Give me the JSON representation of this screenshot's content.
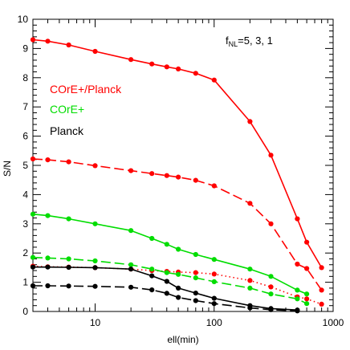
{
  "chart_data": {
    "type": "line",
    "title": "",
    "xlabel": "ell(min)",
    "ylabel": "S/N",
    "xscale": "log",
    "xlim": [
      3,
      1000
    ],
    "ylim": [
      0,
      10
    ],
    "x_tick_labels": [
      "10",
      "100",
      "1000"
    ],
    "y_tick_labels": [
      "0",
      "1",
      "2",
      "3",
      "4",
      "5",
      "6",
      "7",
      "8",
      "9",
      "10"
    ],
    "annotation": {
      "main": "f",
      "sub": "NL",
      "rest": "=5, 3, 1"
    },
    "legend": [
      {
        "label": "COrE+/Planck",
        "color": "#ff0000"
      },
      {
        "label": "COrE+",
        "color": "#00dd00"
      },
      {
        "label": "Planck",
        "color": "#000000"
      }
    ],
    "series": [
      {
        "group": "COrE+/Planck",
        "color": "#ff0000",
        "dash": "solid",
        "x": [
          3,
          4,
          6,
          10,
          20,
          30,
          40,
          50,
          70,
          100,
          200,
          300,
          500,
          600,
          800
        ],
        "y": [
          9.3,
          9.25,
          9.12,
          8.9,
          8.62,
          8.47,
          8.37,
          8.3,
          8.15,
          7.92,
          6.5,
          5.35,
          3.17,
          2.37,
          1.5
        ]
      },
      {
        "group": "COrE+/Planck",
        "color": "#ff0000",
        "dash": "longdash",
        "x": [
          3,
          4,
          6,
          10,
          20,
          30,
          40,
          50,
          70,
          100,
          200,
          300,
          500,
          600,
          800
        ],
        "y": [
          5.22,
          5.19,
          5.12,
          4.99,
          4.82,
          4.72,
          4.65,
          4.6,
          4.49,
          4.3,
          3.7,
          3.0,
          1.62,
          1.47,
          0.73
        ]
      },
      {
        "group": "COrE+/Planck",
        "color": "#ff0000",
        "dash": "dotted",
        "x": [
          3,
          4,
          6,
          10,
          20,
          30,
          40,
          50,
          70,
          100,
          200,
          300,
          500,
          600,
          800
        ],
        "y": [
          1.55,
          1.53,
          1.52,
          1.5,
          1.45,
          1.4,
          1.37,
          1.35,
          1.33,
          1.28,
          1.06,
          0.84,
          0.5,
          0.43,
          0.25
        ]
      },
      {
        "group": "COrE+",
        "color": "#00dd00",
        "dash": "solid",
        "x": [
          3,
          4,
          6,
          10,
          20,
          30,
          40,
          50,
          70,
          100,
          200,
          300,
          500,
          600
        ],
        "y": [
          3.33,
          3.28,
          3.17,
          3.0,
          2.77,
          2.5,
          2.3,
          2.13,
          1.95,
          1.78,
          1.45,
          1.2,
          0.73,
          0.6
        ]
      },
      {
        "group": "COrE+",
        "color": "#00dd00",
        "dash": "longdash",
        "x": [
          3,
          4,
          6,
          10,
          20,
          30,
          40,
          50,
          70,
          100,
          200,
          300,
          500,
          600
        ],
        "y": [
          1.85,
          1.83,
          1.8,
          1.73,
          1.6,
          1.45,
          1.33,
          1.27,
          1.15,
          1.02,
          0.8,
          0.6,
          0.43,
          0.27
        ]
      },
      {
        "group": "Planck",
        "color": "#000000",
        "dash": "solid",
        "x": [
          3,
          4,
          6,
          10,
          20,
          30,
          40,
          50,
          70,
          100,
          200,
          300,
          500
        ],
        "y": [
          1.52,
          1.52,
          1.51,
          1.5,
          1.45,
          1.22,
          1.03,
          0.8,
          0.63,
          0.45,
          0.2,
          0.1,
          0.05
        ]
      },
      {
        "group": "Planck",
        "color": "#000000",
        "dash": "longdash",
        "x": [
          3,
          4,
          6,
          10,
          20,
          30,
          40,
          50,
          70,
          100,
          200,
          300,
          500
        ],
        "y": [
          0.88,
          0.88,
          0.87,
          0.86,
          0.83,
          0.74,
          0.62,
          0.48,
          0.37,
          0.27,
          0.12,
          0.06,
          0.02
        ]
      }
    ]
  }
}
